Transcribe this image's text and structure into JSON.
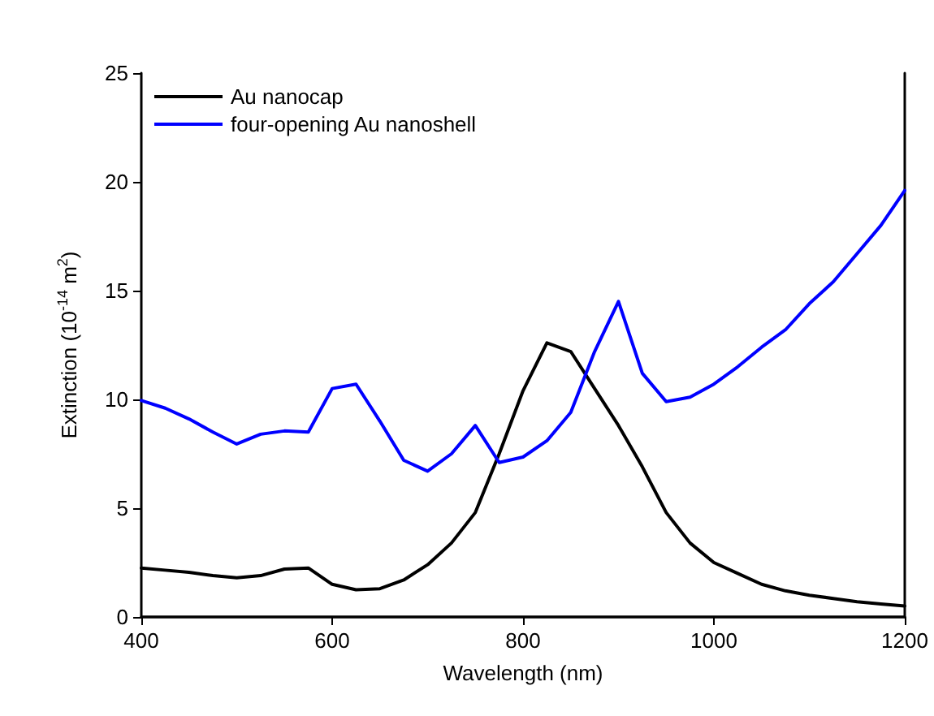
{
  "chart_data": {
    "type": "line",
    "xlabel": "Wavelength (nm)",
    "ylabel": "Extinction (10$^{-14}$ m$^{2}$)",
    "x": [
      400,
      425,
      450,
      475,
      500,
      525,
      550,
      575,
      600,
      625,
      650,
      675,
      700,
      725,
      750,
      775,
      800,
      825,
      850,
      875,
      900,
      925,
      950,
      975,
      1000,
      1025,
      1050,
      1075,
      1100,
      1125,
      1150,
      1175,
      1200
    ],
    "series": [
      {
        "name": "Au nanocap",
        "color": "#000000",
        "values": [
          2.25,
          2.15,
          2.05,
          1.9,
          1.8,
          1.9,
          2.2,
          2.25,
          1.5,
          1.25,
          1.3,
          1.7,
          2.4,
          3.4,
          4.8,
          7.5,
          10.4,
          12.6,
          12.2,
          10.5,
          8.8,
          6.9,
          4.8,
          3.4,
          2.5,
          2.0,
          1.5,
          1.2,
          1.0,
          0.85,
          0.7,
          0.6,
          0.5
        ]
      },
      {
        "name": "four-opening Au nanoshell",
        "color": "#0000ff",
        "values": [
          9.95,
          9.6,
          9.1,
          8.5,
          7.95,
          8.4,
          8.55,
          8.5,
          10.5,
          10.7,
          9.0,
          7.2,
          6.7,
          7.5,
          8.8,
          7.1,
          7.35,
          8.1,
          9.4,
          12.2,
          14.5,
          11.2,
          9.9,
          10.1,
          10.7,
          11.5,
          12.4,
          13.2,
          14.4,
          15.4,
          16.7,
          18.0,
          19.6
        ]
      }
    ],
    "xlim": [
      400,
      1200
    ],
    "xticks": [
      400,
      600,
      800,
      1000,
      1200
    ],
    "ylim": [
      0,
      25
    ],
    "yticks": [
      0,
      5,
      10,
      15,
      20,
      25
    ],
    "grid": false,
    "legend": "top left",
    "marker": "none",
    "line_style": "solid"
  }
}
